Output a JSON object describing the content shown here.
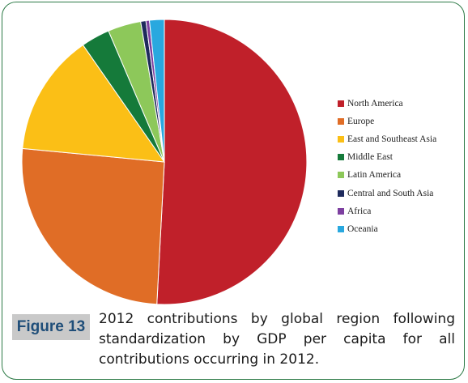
{
  "chart_data": {
    "type": "pie",
    "title": "",
    "legend_position": "right",
    "slices": [
      {
        "label": "North America",
        "value": 51.5,
        "color": "#c0202a"
      },
      {
        "label": "Europe",
        "value": 26.0,
        "color": "#e06d26"
      },
      {
        "label": "East and Southeast Asia",
        "value": 14.0,
        "color": "#fbbf16"
      },
      {
        "label": "Middle East",
        "value": 3.3,
        "color": "#157a3a"
      },
      {
        "label": "Latin America",
        "value": 3.8,
        "color": "#8dc85a"
      },
      {
        "label": "Central and South Asia",
        "value": 0.6,
        "color": "#1e2a5c"
      },
      {
        "label": "Africa",
        "value": 0.4,
        "color": "#7d3fa0"
      },
      {
        "label": "Oceania",
        "value": 1.7,
        "color": "#29a8df"
      }
    ]
  },
  "caption": {
    "label": "Figure 13",
    "text": "2012 contributions by global region following standardization by GDP per capita for all contributions occurring in 2012."
  }
}
